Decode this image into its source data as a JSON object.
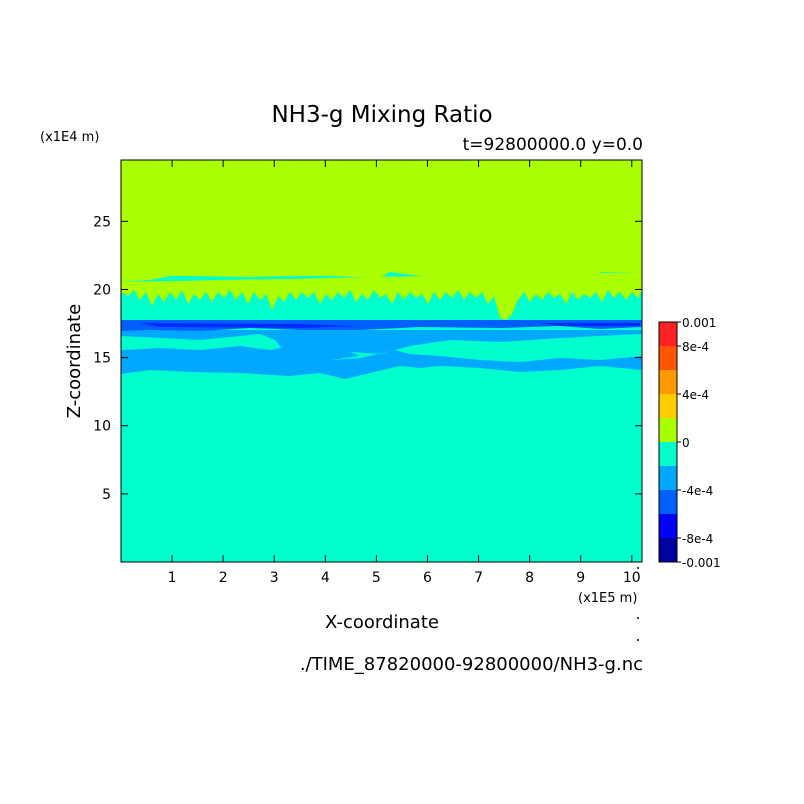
{
  "chart_data": {
    "type": "heatmap",
    "title": "NH3-g Mixing Ratio",
    "subtitle": "t=92800000.0 y=0.0",
    "xlabel": "X-coordinate",
    "ylabel": "Z-coordinate",
    "x_unit": "(x1E5 m)",
    "y_unit": "(x1E4 m)",
    "footer": "./TIME_87820000-92800000/NH3-g.nc",
    "xlim": [
      0,
      10.2
    ],
    "ylim": [
      0,
      29.5
    ],
    "x_ticks": [
      1,
      2,
      3,
      4,
      5,
      6,
      7,
      8,
      9,
      10
    ],
    "y_ticks": [
      5,
      10,
      15,
      20,
      25
    ],
    "colorbar": {
      "range": [
        -0.001,
        0.001
      ],
      "tick_values": [
        0.001,
        0.0008,
        0.0004,
        0,
        -0.0004,
        -0.0008,
        -0.001
      ],
      "tick_labels": [
        "0.001",
        "8e-4",
        "4e-4",
        "0",
        "-4e-4",
        "-8e-4",
        "-0.001"
      ],
      "levels": [
        {
          "from": -0.001,
          "to": -0.0008,
          "color": "#0000a0"
        },
        {
          "from": -0.0008,
          "to": -0.0006,
          "color": "#0000ff"
        },
        {
          "from": -0.0006,
          "to": -0.0004,
          "color": "#0060ff"
        },
        {
          "from": -0.0004,
          "to": -0.0002,
          "color": "#00a8ff"
        },
        {
          "from": -0.0002,
          "to": 0,
          "color": "#00ffcc"
        },
        {
          "from": 0,
          "to": 0.0002,
          "color": "#aaff00"
        },
        {
          "from": 0.0002,
          "to": 0.0004,
          "color": "#ffcc00"
        },
        {
          "from": 0.0004,
          "to": 0.0006,
          "color": "#ff9900"
        },
        {
          "from": 0.0006,
          "to": 0.0008,
          "color": "#ff5500"
        },
        {
          "from": 0.0008,
          "to": 0.001,
          "color": "#ff2222"
        }
      ]
    },
    "regions": [
      {
        "name": "upper-positive",
        "z": [
          20.8,
          29.5
        ],
        "level_color": "#aaff00"
      },
      {
        "name": "transition-band",
        "z": [
          19.0,
          20.8
        ],
        "level_color": "#00ffcc"
      },
      {
        "name": "strong-negative-band",
        "z": [
          17.8,
          18.4
        ],
        "level_color": "#0060ff"
      },
      {
        "name": "moderate-negative-band",
        "z": [
          14.0,
          17.8
        ],
        "level_color": "#00a8ff"
      },
      {
        "name": "lower-near-zero",
        "z": [
          0,
          14.0
        ],
        "level_color": "#00ffcc"
      }
    ]
  }
}
